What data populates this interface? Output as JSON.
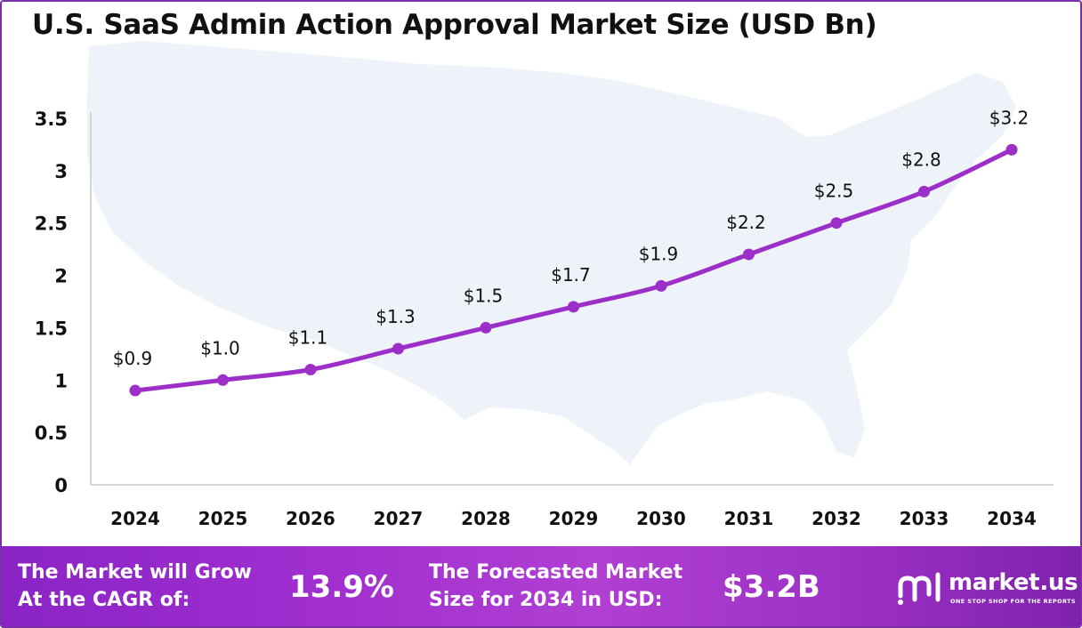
{
  "title": "U.S. SaaS Admin Action Approval Market Size (USD Bn)",
  "chart_data": {
    "type": "line",
    "title": "U.S. SaaS Admin Action Approval Market Size (USD Bn)",
    "x": [
      "2024",
      "2025",
      "2026",
      "2027",
      "2028",
      "2029",
      "2030",
      "2031",
      "2032",
      "2033",
      "2034"
    ],
    "series": [
      {
        "values": [
          0.9,
          1.0,
          1.1,
          1.3,
          1.5,
          1.7,
          1.9,
          2.2,
          2.5,
          2.8,
          3.2
        ],
        "labels": [
          "$0.9",
          "$1.0",
          "$1.1",
          "$1.3",
          "$1.5",
          "$1.7",
          "$1.9",
          "$2.2",
          "$2.5",
          "$2.8",
          "$3.2"
        ]
      }
    ],
    "yticks": [
      "0",
      "0.5",
      "1",
      "1.5",
      "2",
      "2.5",
      "3",
      "3.5"
    ],
    "ylim": [
      0,
      3.5
    ],
    "grid": false,
    "legend": "none",
    "colors": {
      "line": "#9b2fc8",
      "background_map": "#eef3fa"
    }
  },
  "footer": {
    "cagr_label": "The Market will Grow\nAt the CAGR of:",
    "cagr_value": "13.9%",
    "forecast_label": "The Forecasted Market\nSize for 2034 in USD:",
    "forecast_value": "$3.2B",
    "brand_name": "market.us",
    "brand_tagline": "ONE STOP SHOP FOR THE REPORTS",
    "brand_logo_icon": "market-us-logo-icon"
  }
}
